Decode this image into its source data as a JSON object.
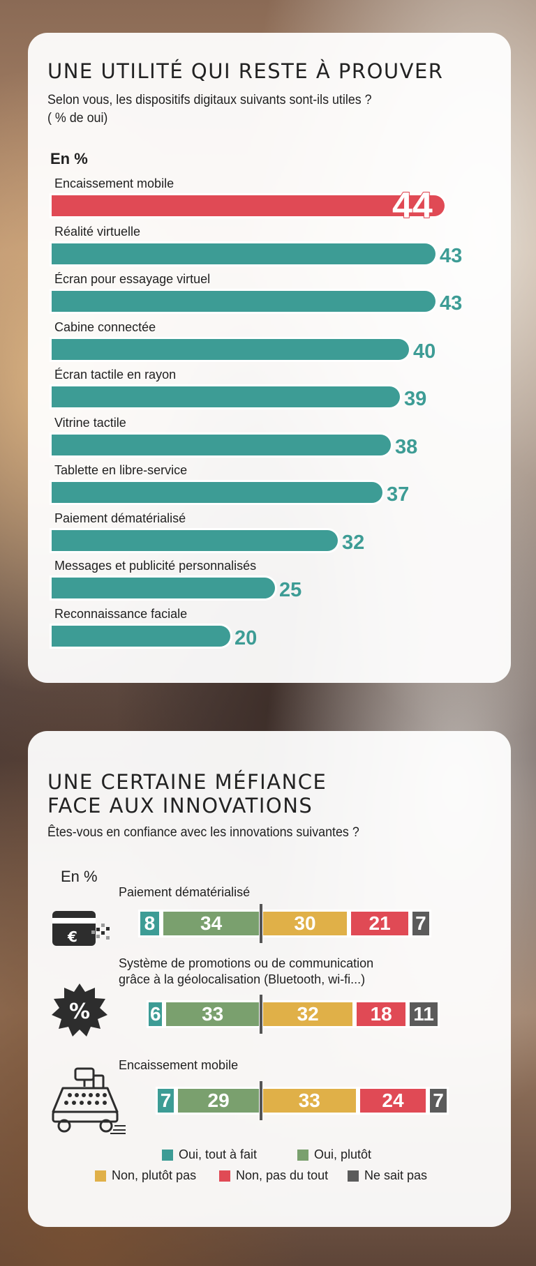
{
  "colors": {
    "highlight": "#e04a55",
    "teal": "#3d9c95",
    "oui_tout_a_fait": "#3d9c95",
    "oui_plutot": "#7aa06e",
    "non_plutot_pas": "#e0b048",
    "non_pas_du_tout": "#e04a55",
    "ne_sait_pas": "#5b5b5b"
  },
  "panel1": {
    "title": "UNE UTILITÉ QUI RESTE À PROUVER",
    "question_line1": "Selon vous, les dispositifs digitaux suivants sont-ils utiles ?",
    "question_line2": "( % de oui)",
    "unit": "En %"
  },
  "panel2": {
    "title_line1": "UNE CERTAINE MÉFIANCE",
    "title_line2": "FACE AUX INNOVATIONS",
    "question": "Êtes-vous en confiance avec les innovations suivantes ?",
    "unit": "En %"
  },
  "chart_data": [
    {
      "type": "bar",
      "orientation": "horizontal",
      "title": "UNE UTILITÉ QUI RESTE À PROUVER",
      "subtitle": "Selon vous, les dispositifs digitaux suivants sont-ils utiles ? ( % de oui)",
      "unit": "En %",
      "categories": [
        "Encaissement mobile",
        "Réalité virtuelle",
        "Écran pour essayage virtuel",
        "Cabine connectée",
        "Écran tactile en rayon",
        "Vitrine tactile",
        "Tablette en libre-service",
        "Paiement dématérialisé",
        "Messages et publicité personnalisés",
        "Reconnaissance faciale"
      ],
      "values": [
        44,
        43,
        43,
        40,
        39,
        38,
        37,
        32,
        25,
        20
      ],
      "highlight_index": 0,
      "colors": {
        "highlight": "#e04a55",
        "default": "#3d9c95"
      }
    },
    {
      "type": "bar",
      "orientation": "horizontal",
      "stacked": true,
      "diverging": true,
      "title": "UNE CERTAINE MÉFIANCE FACE AUX INNOVATIONS",
      "subtitle": "Êtes-vous en confiance avec les innovations suivantes ?",
      "unit": "En %",
      "categories": [
        "Paiement dématérialisé",
        "Système de promotions ou de communication grâce à la géolocalisation (Bluetooth, wi-fi...)",
        "Encaissement mobile"
      ],
      "category_lines": [
        [
          "Paiement dématérialisé"
        ],
        [
          "Système de promotions ou de communication",
          "grâce à la géolocalisation (Bluetooth, wi-fi...)"
        ],
        [
          "Encaissement mobile"
        ]
      ],
      "icons": [
        "credit-card-icon",
        "percent-badge-icon",
        "cash-register-icon"
      ],
      "series": [
        {
          "name": "Oui, tout à fait",
          "color": "#3d9c95",
          "values": [
            8,
            6,
            7
          ]
        },
        {
          "name": "Oui, plutôt",
          "color": "#7aa06e",
          "values": [
            34,
            33,
            29
          ]
        },
        {
          "name": "Non, plutôt pas",
          "color": "#e0b048",
          "values": [
            30,
            32,
            33
          ]
        },
        {
          "name": "Non, pas du tout",
          "color": "#e04a55",
          "values": [
            21,
            18,
            24
          ]
        },
        {
          "name": "Ne sait pas",
          "color": "#5b5b5b",
          "values": [
            7,
            11,
            7
          ]
        }
      ],
      "legend_position": "bottom"
    }
  ]
}
